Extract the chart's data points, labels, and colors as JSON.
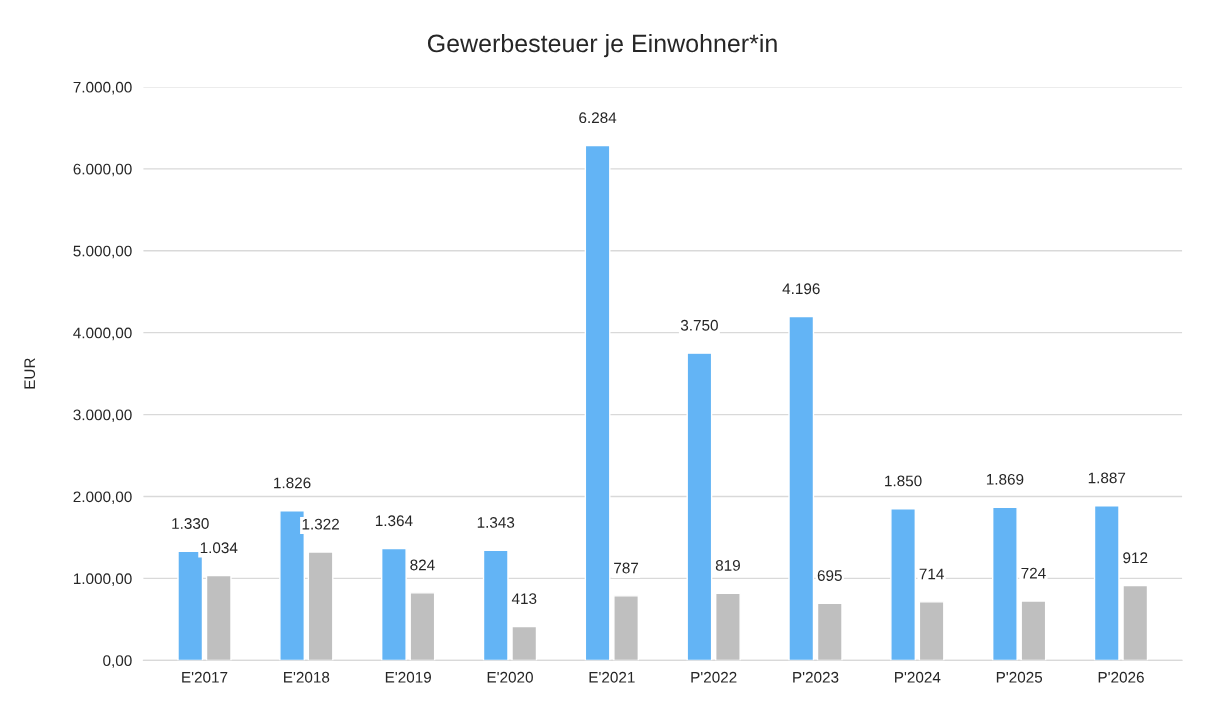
{
  "chart_data": {
    "type": "bar",
    "title": "Gewerbesteuer je Einwohner*in",
    "ylabel": "EUR",
    "categories": [
      "E'2017",
      "E'2018",
      "E'2019",
      "E'2020",
      "E'2021",
      "P'2022",
      "P'2023",
      "P'2024",
      "P'2025",
      "P'2026"
    ],
    "series": [
      {
        "color": "#63b4f5",
        "values": [
          1330,
          1826,
          1364,
          1343,
          6284,
          3750,
          4196,
          1850,
          1869,
          1887
        ],
        "value_labels": [
          "1.330",
          "1.826",
          "1.364",
          "1.343",
          "6.284",
          "3.750",
          "4.196",
          "1.850",
          "1.869",
          "1.887"
        ]
      },
      {
        "color": "#bfbfbf",
        "values": [
          1034,
          1322,
          824,
          413,
          787,
          819,
          695,
          714,
          724,
          912
        ],
        "value_labels": [
          "1.034",
          "1.322",
          "824",
          "413",
          "787",
          "819",
          "695",
          "714",
          "724",
          "912"
        ]
      }
    ],
    "ylim": [
      0,
      7000
    ],
    "yticks": [
      {
        "value": 0,
        "label": "0,00"
      },
      {
        "value": 1000,
        "label": "1.000,00"
      },
      {
        "value": 2000,
        "label": "2.000,00"
      },
      {
        "value": 3000,
        "label": "3.000,00"
      },
      {
        "value": 4000,
        "label": "4.000,00"
      },
      {
        "value": 5000,
        "label": "5.000,00"
      },
      {
        "value": 6000,
        "label": "6.000,00"
      },
      {
        "value": 7000,
        "label": "7.000,00"
      }
    ],
    "grid": "y"
  }
}
